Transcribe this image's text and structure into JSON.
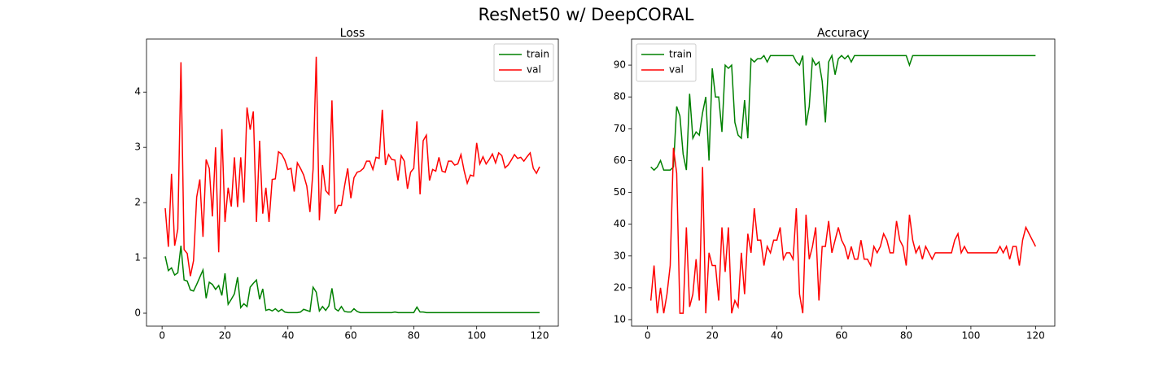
{
  "title": "ResNet50 w/ DeepCORAL",
  "chart_data": [
    {
      "type": "line",
      "title": "Loss",
      "x": [
        1,
        2,
        3,
        4,
        5,
        6,
        7,
        8,
        9,
        10,
        11,
        12,
        13,
        14,
        15,
        16,
        17,
        18,
        19,
        20,
        21,
        22,
        23,
        24,
        25,
        26,
        27,
        28,
        29,
        30,
        31,
        32,
        33,
        34,
        35,
        36,
        37,
        38,
        39,
        40,
        41,
        42,
        43,
        44,
        45,
        46,
        47,
        48,
        49,
        50,
        51,
        52,
        53,
        54,
        55,
        56,
        57,
        58,
        59,
        60,
        61,
        62,
        63,
        64,
        65,
        66,
        67,
        68,
        69,
        70,
        71,
        72,
        73,
        74,
        75,
        76,
        77,
        78,
        79,
        80,
        81,
        82,
        83,
        84,
        85,
        86,
        87,
        88,
        89,
        90,
        91,
        92,
        93,
        94,
        95,
        96,
        97,
        98,
        99,
        100,
        101,
        102,
        103,
        104,
        105,
        106,
        107,
        108,
        109,
        110,
        111,
        112,
        113,
        114,
        115,
        116,
        117,
        118,
        119,
        120
      ],
      "xlim": [
        -4.95,
        125.95
      ],
      "xticks": [
        0,
        20,
        40,
        60,
        80,
        100,
        120
      ],
      "ylim": [
        -0.235,
        4.96
      ],
      "yticks": [
        0,
        1,
        2,
        3,
        4
      ],
      "legend": "upper right",
      "series": [
        {
          "name": "train",
          "color": "#008000",
          "values": [
            1.03,
            0.77,
            0.82,
            0.69,
            0.73,
            1.22,
            0.6,
            0.58,
            0.42,
            0.4,
            0.52,
            0.65,
            0.78,
            0.27,
            0.56,
            0.52,
            0.43,
            0.5,
            0.32,
            0.72,
            0.16,
            0.25,
            0.35,
            0.65,
            0.1,
            0.17,
            0.12,
            0.47,
            0.54,
            0.6,
            0.25,
            0.44,
            0.05,
            0.07,
            0.04,
            0.08,
            0.03,
            0.07,
            0.02,
            0.01,
            0.01,
            0.01,
            0.01,
            0.02,
            0.07,
            0.05,
            0.03,
            0.47,
            0.38,
            0.04,
            0.12,
            0.05,
            0.13,
            0.45,
            0.08,
            0.04,
            0.12,
            0.03,
            0.02,
            0.02,
            0.08,
            0.03,
            0.01,
            0.01,
            0.01,
            0.01,
            0.01,
            0.01,
            0.01,
            0.01,
            0.01,
            0.01,
            0.01,
            0.02,
            0.01,
            0.01,
            0.01,
            0.01,
            0.01,
            0.01,
            0.11,
            0.02,
            0.02,
            0.01,
            0.01,
            0.01,
            0.01,
            0.01,
            0.01,
            0.01,
            0.01,
            0.01,
            0.01,
            0.01,
            0.01,
            0.01,
            0.01,
            0.01,
            0.01,
            0.01,
            0.01,
            0.01,
            0.01,
            0.01,
            0.01,
            0.01,
            0.01,
            0.01,
            0.01,
            0.01,
            0.01,
            0.01,
            0.01,
            0.01,
            0.01,
            0.01,
            0.01,
            0.01,
            0.01,
            0.01
          ]
        },
        {
          "name": "val",
          "color": "#ff0000",
          "values": [
            1.9,
            1.2,
            2.52,
            1.22,
            1.52,
            4.54,
            1.15,
            1.08,
            0.67,
            0.95,
            2.1,
            2.42,
            1.38,
            2.78,
            2.62,
            1.75,
            3.0,
            1.1,
            3.33,
            1.65,
            2.27,
            1.93,
            2.82,
            1.92,
            2.82,
            2.0,
            3.72,
            3.32,
            3.65,
            1.65,
            3.12,
            1.8,
            2.27,
            1.65,
            2.42,
            2.43,
            2.92,
            2.88,
            2.77,
            2.6,
            2.62,
            2.2,
            2.72,
            2.62,
            2.5,
            2.3,
            1.83,
            2.6,
            4.64,
            1.68,
            2.68,
            2.22,
            2.15,
            3.85,
            1.8,
            1.95,
            1.95,
            2.3,
            2.62,
            2.08,
            2.45,
            2.55,
            2.57,
            2.62,
            2.75,
            2.75,
            2.6,
            2.82,
            2.8,
            3.68,
            2.68,
            2.87,
            2.78,
            2.77,
            2.4,
            2.85,
            2.75,
            2.25,
            2.55,
            2.62,
            3.47,
            2.15,
            3.12,
            3.22,
            2.4,
            2.6,
            2.57,
            2.82,
            2.57,
            2.55,
            2.75,
            2.75,
            2.68,
            2.7,
            2.87,
            2.58,
            2.35,
            2.5,
            2.48,
            3.08,
            2.7,
            2.83,
            2.7,
            2.78,
            2.88,
            2.72,
            2.9,
            2.85,
            2.63,
            2.68,
            2.77,
            2.87,
            2.8,
            2.82,
            2.75,
            2.83,
            2.9,
            2.62,
            2.53,
            2.65
          ]
        }
      ]
    },
    {
      "type": "line",
      "title": "Accuracy",
      "x": [
        1,
        2,
        3,
        4,
        5,
        6,
        7,
        8,
        9,
        10,
        11,
        12,
        13,
        14,
        15,
        16,
        17,
        18,
        19,
        20,
        21,
        22,
        23,
        24,
        25,
        26,
        27,
        28,
        29,
        30,
        31,
        32,
        33,
        34,
        35,
        36,
        37,
        38,
        39,
        40,
        41,
        42,
        43,
        44,
        45,
        46,
        47,
        48,
        49,
        50,
        51,
        52,
        53,
        54,
        55,
        56,
        57,
        58,
        59,
        60,
        61,
        62,
        63,
        64,
        65,
        66,
        67,
        68,
        69,
        70,
        71,
        72,
        73,
        74,
        75,
        76,
        77,
        78,
        79,
        80,
        81,
        82,
        83,
        84,
        85,
        86,
        87,
        88,
        89,
        90,
        91,
        92,
        93,
        94,
        95,
        96,
        97,
        98,
        99,
        100,
        101,
        102,
        103,
        104,
        105,
        106,
        107,
        108,
        109,
        110,
        111,
        112,
        113,
        114,
        115,
        116,
        117,
        118,
        119,
        120
      ],
      "xlim": [
        -4.95,
        125.95
      ],
      "xticks": [
        0,
        20,
        40,
        60,
        80,
        100,
        120
      ],
      "ylim": [
        7.95,
        98.2
      ],
      "yticks": [
        10,
        20,
        30,
        40,
        50,
        60,
        70,
        80,
        90
      ],
      "legend": "upper left",
      "series": [
        {
          "name": "train",
          "color": "#008000",
          "values": [
            58,
            57,
            58,
            60,
            57,
            57,
            57,
            58,
            77,
            74,
            62,
            57,
            81,
            67,
            69,
            68,
            75,
            80,
            60,
            89,
            80,
            80,
            69,
            90,
            89,
            90,
            72,
            68,
            67,
            79,
            67,
            92,
            91,
            92,
            92,
            93,
            91,
            93,
            93,
            93,
            93,
            93,
            93,
            93,
            93,
            91,
            90,
            93,
            71,
            77,
            92,
            90,
            91,
            85,
            72,
            91,
            93,
            87,
            92,
            93,
            92,
            93,
            91,
            93,
            93,
            93,
            93,
            93,
            93,
            93,
            93,
            93,
            93,
            93,
            93,
            93,
            93,
            93,
            93,
            93,
            90,
            93,
            93,
            93,
            93,
            93,
            93,
            93,
            93,
            93,
            93,
            93,
            93,
            93,
            93,
            93,
            93,
            93,
            93,
            93,
            93,
            93,
            93,
            93,
            93,
            93,
            93,
            93,
            93,
            93,
            93,
            93,
            93,
            93,
            93,
            93,
            93,
            93,
            93,
            93
          ]
        },
        {
          "name": "val",
          "color": "#ff0000",
          "values": [
            16,
            27,
            12,
            20,
            12,
            18,
            27,
            64,
            56,
            12,
            12,
            39,
            14,
            18,
            29,
            16,
            58,
            12,
            31,
            27,
            27,
            16,
            39,
            25,
            39,
            12,
            16,
            14,
            31,
            18,
            37,
            31,
            45,
            35,
            35,
            27,
            33,
            31,
            35,
            35,
            39,
            29,
            31,
            31,
            29,
            45,
            18,
            12,
            43,
            29,
            33,
            39,
            16,
            33,
            33,
            41,
            31,
            35,
            39,
            35,
            33,
            29,
            33,
            29,
            29,
            35,
            29,
            29,
            27,
            33,
            31,
            33,
            37,
            35,
            31,
            31,
            41,
            35,
            33,
            27,
            43,
            35,
            31,
            33,
            29,
            33,
            31,
            29,
            31,
            31,
            31,
            31,
            31,
            31,
            35,
            37,
            31,
            33,
            31,
            31,
            31,
            31,
            31,
            31,
            31,
            31,
            31,
            31,
            33,
            31,
            33,
            29,
            33,
            33,
            27,
            35,
            39,
            37,
            35,
            33
          ]
        }
      ]
    }
  ]
}
